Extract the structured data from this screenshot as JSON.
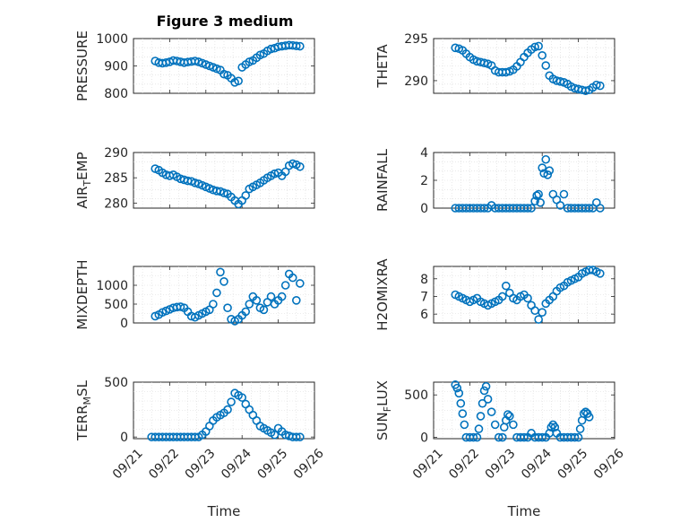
{
  "figure": {
    "title": "Figure 3 medium",
    "xlabel": "Time",
    "x_ticks": [
      "09/21",
      "09/22",
      "09/23",
      "09/24",
      "09/25",
      "09/26"
    ],
    "x_range_days": [
      21,
      26
    ],
    "marker_color": "#0072bd"
  },
  "chart_data": [
    {
      "type": "scatter",
      "ylabel": "PRESSURE",
      "ylabel_parts": [
        {
          "t": "PRESSURE",
          "sub": false
        }
      ],
      "ylim": [
        800,
        1000
      ],
      "yticks": [
        800,
        900,
        1000
      ],
      "x": [
        21.6,
        21.7,
        21.8,
        21.9,
        22.0,
        22.1,
        22.2,
        22.3,
        22.4,
        22.5,
        22.6,
        22.7,
        22.8,
        22.9,
        23.0,
        23.1,
        23.2,
        23.3,
        23.4,
        23.5,
        23.6,
        23.7,
        23.8,
        23.9,
        24.0,
        24.1,
        24.2,
        24.3,
        24.4,
        24.5,
        24.6,
        24.7,
        24.8,
        24.9,
        25.0,
        25.1,
        25.2,
        25.3,
        25.4,
        25.5,
        25.6
      ],
      "y": [
        918,
        912,
        910,
        912,
        915,
        920,
        918,
        915,
        912,
        914,
        916,
        918,
        915,
        910,
        905,
        900,
        895,
        890,
        885,
        870,
        866,
        855,
        840,
        845,
        895,
        905,
        915,
        920,
        930,
        940,
        945,
        955,
        962,
        965,
        970,
        972,
        974,
        976,
        975,
        973,
        972
      ]
    },
    {
      "type": "scatter",
      "ylabel": "THETA",
      "ylabel_parts": [
        {
          "t": "THETA",
          "sub": false
        }
      ],
      "ylim": [
        288.5,
        295
      ],
      "yticks": [
        290,
        295
      ],
      "x": [
        21.6,
        21.7,
        21.8,
        21.9,
        22.0,
        22.1,
        22.2,
        22.3,
        22.4,
        22.5,
        22.6,
        22.7,
        22.8,
        22.9,
        23.0,
        23.1,
        23.2,
        23.3,
        23.4,
        23.5,
        23.6,
        23.7,
        23.8,
        23.9,
        24.0,
        24.1,
        24.2,
        24.3,
        24.4,
        24.5,
        24.6,
        24.7,
        24.8,
        24.9,
        25.0,
        25.1,
        25.2,
        25.3,
        25.4,
        25.5,
        25.6
      ],
      "y": [
        293.9,
        293.8,
        293.6,
        293.2,
        292.8,
        292.5,
        292.3,
        292.2,
        292.1,
        292.0,
        291.8,
        291.2,
        291.0,
        291.0,
        291.0,
        291.1,
        291.3,
        291.7,
        292.2,
        292.8,
        293.3,
        293.7,
        294.0,
        294.1,
        293.0,
        291.8,
        290.6,
        290.2,
        290.0,
        289.9,
        289.8,
        289.6,
        289.3,
        289.1,
        289.0,
        288.9,
        288.8,
        288.9,
        289.2,
        289.5,
        289.4
      ]
    },
    {
      "type": "scatter",
      "ylabel": "AIR_TEMP",
      "ylabel_parts": [
        {
          "t": "AIR",
          "sub": false
        },
        {
          "t": "T",
          "sub": true
        },
        {
          "t": "EMP",
          "sub": false
        }
      ],
      "ylim": [
        279,
        290
      ],
      "yticks": [
        280,
        285,
        290
      ],
      "x": [
        21.6,
        21.7,
        21.8,
        21.9,
        22.0,
        22.1,
        22.2,
        22.3,
        22.4,
        22.5,
        22.6,
        22.7,
        22.8,
        22.9,
        23.0,
        23.1,
        23.2,
        23.3,
        23.4,
        23.5,
        23.6,
        23.7,
        23.8,
        23.9,
        24.0,
        24.1,
        24.2,
        24.3,
        24.4,
        24.5,
        24.6,
        24.7,
        24.8,
        24.9,
        25.0,
        25.1,
        25.2,
        25.3,
        25.4,
        25.5,
        25.6
      ],
      "y": [
        286.8,
        286.5,
        286.0,
        285.6,
        285.4,
        285.6,
        285.2,
        284.8,
        284.6,
        284.4,
        284.3,
        284.0,
        283.8,
        283.5,
        283.2,
        282.9,
        282.6,
        282.4,
        282.3,
        282.0,
        281.8,
        281.2,
        280.5,
        279.8,
        280.5,
        281.5,
        282.8,
        283.2,
        283.6,
        284.0,
        284.5,
        285.0,
        285.4,
        285.8,
        286.0,
        285.4,
        286.2,
        287.4,
        287.8,
        287.6,
        287.2
      ]
    },
    {
      "type": "scatter",
      "ylabel": "RAINFALL",
      "ylabel_parts": [
        {
          "t": "RAINFALL",
          "sub": false
        }
      ],
      "ylim": [
        0,
        4
      ],
      "yticks": [
        0,
        2,
        4
      ],
      "x": [
        21.6,
        21.7,
        21.8,
        21.9,
        22.0,
        22.1,
        22.2,
        22.3,
        22.4,
        22.5,
        22.6,
        22.7,
        22.8,
        22.9,
        23.0,
        23.1,
        23.2,
        23.3,
        23.4,
        23.5,
        23.6,
        23.7,
        23.8,
        23.85,
        23.9,
        23.95,
        24.0,
        24.05,
        24.1,
        24.15,
        24.2,
        24.3,
        24.4,
        24.5,
        24.6,
        24.7,
        24.8,
        24.9,
        25.0,
        25.1,
        25.2,
        25.3,
        25.4,
        25.5,
        25.6
      ],
      "y": [
        0,
        0,
        0,
        0,
        0,
        0,
        0,
        0,
        0,
        0,
        0.2,
        0,
        0,
        0,
        0,
        0,
        0,
        0,
        0,
        0,
        0,
        0,
        0.5,
        0.9,
        1.0,
        0.4,
        2.9,
        2.5,
        3.5,
        2.4,
        2.7,
        1.0,
        0.6,
        0.2,
        1.0,
        0,
        0,
        0,
        0,
        0,
        0,
        0,
        0,
        0.4,
        0
      ]
    },
    {
      "type": "scatter",
      "ylabel": "MIXDEPTH",
      "ylabel_parts": [
        {
          "t": "MIXDEPTH",
          "sub": false
        }
      ],
      "ylim": [
        0,
        1500
      ],
      "yticks": [
        0,
        500,
        1000
      ],
      "x": [
        21.6,
        21.7,
        21.8,
        21.9,
        22.0,
        22.1,
        22.2,
        22.3,
        22.4,
        22.5,
        22.6,
        22.7,
        22.8,
        22.9,
        23.0,
        23.1,
        23.2,
        23.3,
        23.4,
        23.5,
        23.6,
        23.7,
        23.8,
        23.9,
        24.0,
        24.1,
        24.2,
        24.3,
        24.4,
        24.5,
        24.6,
        24.7,
        24.8,
        24.9,
        25.0,
        25.1,
        25.2,
        25.3,
        25.4,
        25.5,
        25.6
      ],
      "y": [
        180,
        220,
        280,
        320,
        360,
        400,
        420,
        430,
        400,
        300,
        180,
        150,
        200,
        250,
        300,
        350,
        500,
        800,
        1350,
        1100,
        400,
        100,
        50,
        100,
        200,
        300,
        500,
        700,
        600,
        400,
        350,
        550,
        700,
        500,
        600,
        700,
        1000,
        1300,
        1200,
        600,
        1050
      ]
    },
    {
      "type": "scatter",
      "ylabel": "H2OMIXRA",
      "ylabel_parts": [
        {
          "t": "H2OMIXRA",
          "sub": false
        }
      ],
      "ylim": [
        5.5,
        8.7
      ],
      "yticks": [
        6,
        7,
        8
      ],
      "x": [
        21.6,
        21.7,
        21.8,
        21.9,
        22.0,
        22.1,
        22.2,
        22.3,
        22.4,
        22.5,
        22.6,
        22.7,
        22.8,
        22.9,
        23.0,
        23.1,
        23.2,
        23.3,
        23.4,
        23.5,
        23.6,
        23.7,
        23.8,
        23.9,
        24.0,
        24.1,
        24.2,
        24.3,
        24.4,
        24.5,
        24.6,
        24.7,
        24.8,
        24.9,
        25.0,
        25.1,
        25.2,
        25.3,
        25.4,
        25.5,
        25.6
      ],
      "y": [
        7.1,
        7.0,
        6.9,
        6.8,
        6.7,
        6.8,
        6.9,
        6.7,
        6.6,
        6.5,
        6.6,
        6.7,
        6.8,
        7.0,
        7.6,
        7.2,
        6.9,
        6.8,
        7.0,
        7.1,
        6.9,
        6.5,
        6.2,
        5.7,
        6.1,
        6.6,
        6.8,
        7.0,
        7.3,
        7.5,
        7.6,
        7.8,
        7.9,
        8.0,
        8.1,
        8.3,
        8.4,
        8.5,
        8.5,
        8.4,
        8.3
      ]
    },
    {
      "type": "scatter",
      "ylabel": "TERR_MSL",
      "ylabel_parts": [
        {
          "t": "TERR",
          "sub": false
        },
        {
          "t": "M",
          "sub": true
        },
        {
          "t": "SL",
          "sub": false
        }
      ],
      "ylim": [
        -15,
        500
      ],
      "yticks": [
        0,
        500
      ],
      "x": [
        21.5,
        21.6,
        21.7,
        21.8,
        21.9,
        22.0,
        22.1,
        22.2,
        22.3,
        22.4,
        22.5,
        22.6,
        22.7,
        22.8,
        22.9,
        23.0,
        23.1,
        23.2,
        23.3,
        23.4,
        23.5,
        23.6,
        23.7,
        23.8,
        23.9,
        24.0,
        24.1,
        24.2,
        24.3,
        24.4,
        24.5,
        24.6,
        24.7,
        24.8,
        24.9,
        25.0,
        25.1,
        25.2,
        25.3,
        25.4,
        25.5,
        25.6
      ],
      "y": [
        0,
        0,
        0,
        0,
        0,
        0,
        0,
        0,
        0,
        0,
        0,
        0,
        0,
        0,
        20,
        50,
        100,
        150,
        180,
        200,
        220,
        250,
        320,
        400,
        380,
        360,
        300,
        250,
        200,
        150,
        100,
        80,
        60,
        40,
        20,
        80,
        50,
        20,
        10,
        0,
        0,
        0
      ]
    },
    {
      "type": "scatter",
      "ylabel": "SUN_FLUX",
      "ylabel_parts": [
        {
          "t": "SUN",
          "sub": false
        },
        {
          "t": "F",
          "sub": true
        },
        {
          "t": "LUX",
          "sub": false
        }
      ],
      "ylim": [
        -15,
        650
      ],
      "yticks": [
        0,
        500
      ],
      "x": [
        21.6,
        21.65,
        21.7,
        21.75,
        21.8,
        21.85,
        21.9,
        22.0,
        22.1,
        22.2,
        22.25,
        22.3,
        22.35,
        22.4,
        22.45,
        22.5,
        22.6,
        22.7,
        22.8,
        22.9,
        22.95,
        23.0,
        23.05,
        23.1,
        23.2,
        23.3,
        23.4,
        23.5,
        23.6,
        23.7,
        23.8,
        23.9,
        24.0,
        24.1,
        24.2,
        24.25,
        24.3,
        24.35,
        24.4,
        24.5,
        24.6,
        24.7,
        24.8,
        24.9,
        25.0,
        25.05,
        25.1,
        25.15,
        25.2,
        25.25,
        25.3
      ],
      "y": [
        620,
        580,
        520,
        400,
        280,
        150,
        0,
        0,
        0,
        0,
        100,
        250,
        400,
        550,
        600,
        450,
        300,
        150,
        0,
        0,
        120,
        200,
        270,
        250,
        150,
        0,
        0,
        0,
        0,
        50,
        0,
        0,
        0,
        0,
        50,
        120,
        150,
        120,
        50,
        0,
        0,
        0,
        0,
        0,
        0,
        100,
        200,
        280,
        300,
        280,
        240
      ]
    }
  ]
}
